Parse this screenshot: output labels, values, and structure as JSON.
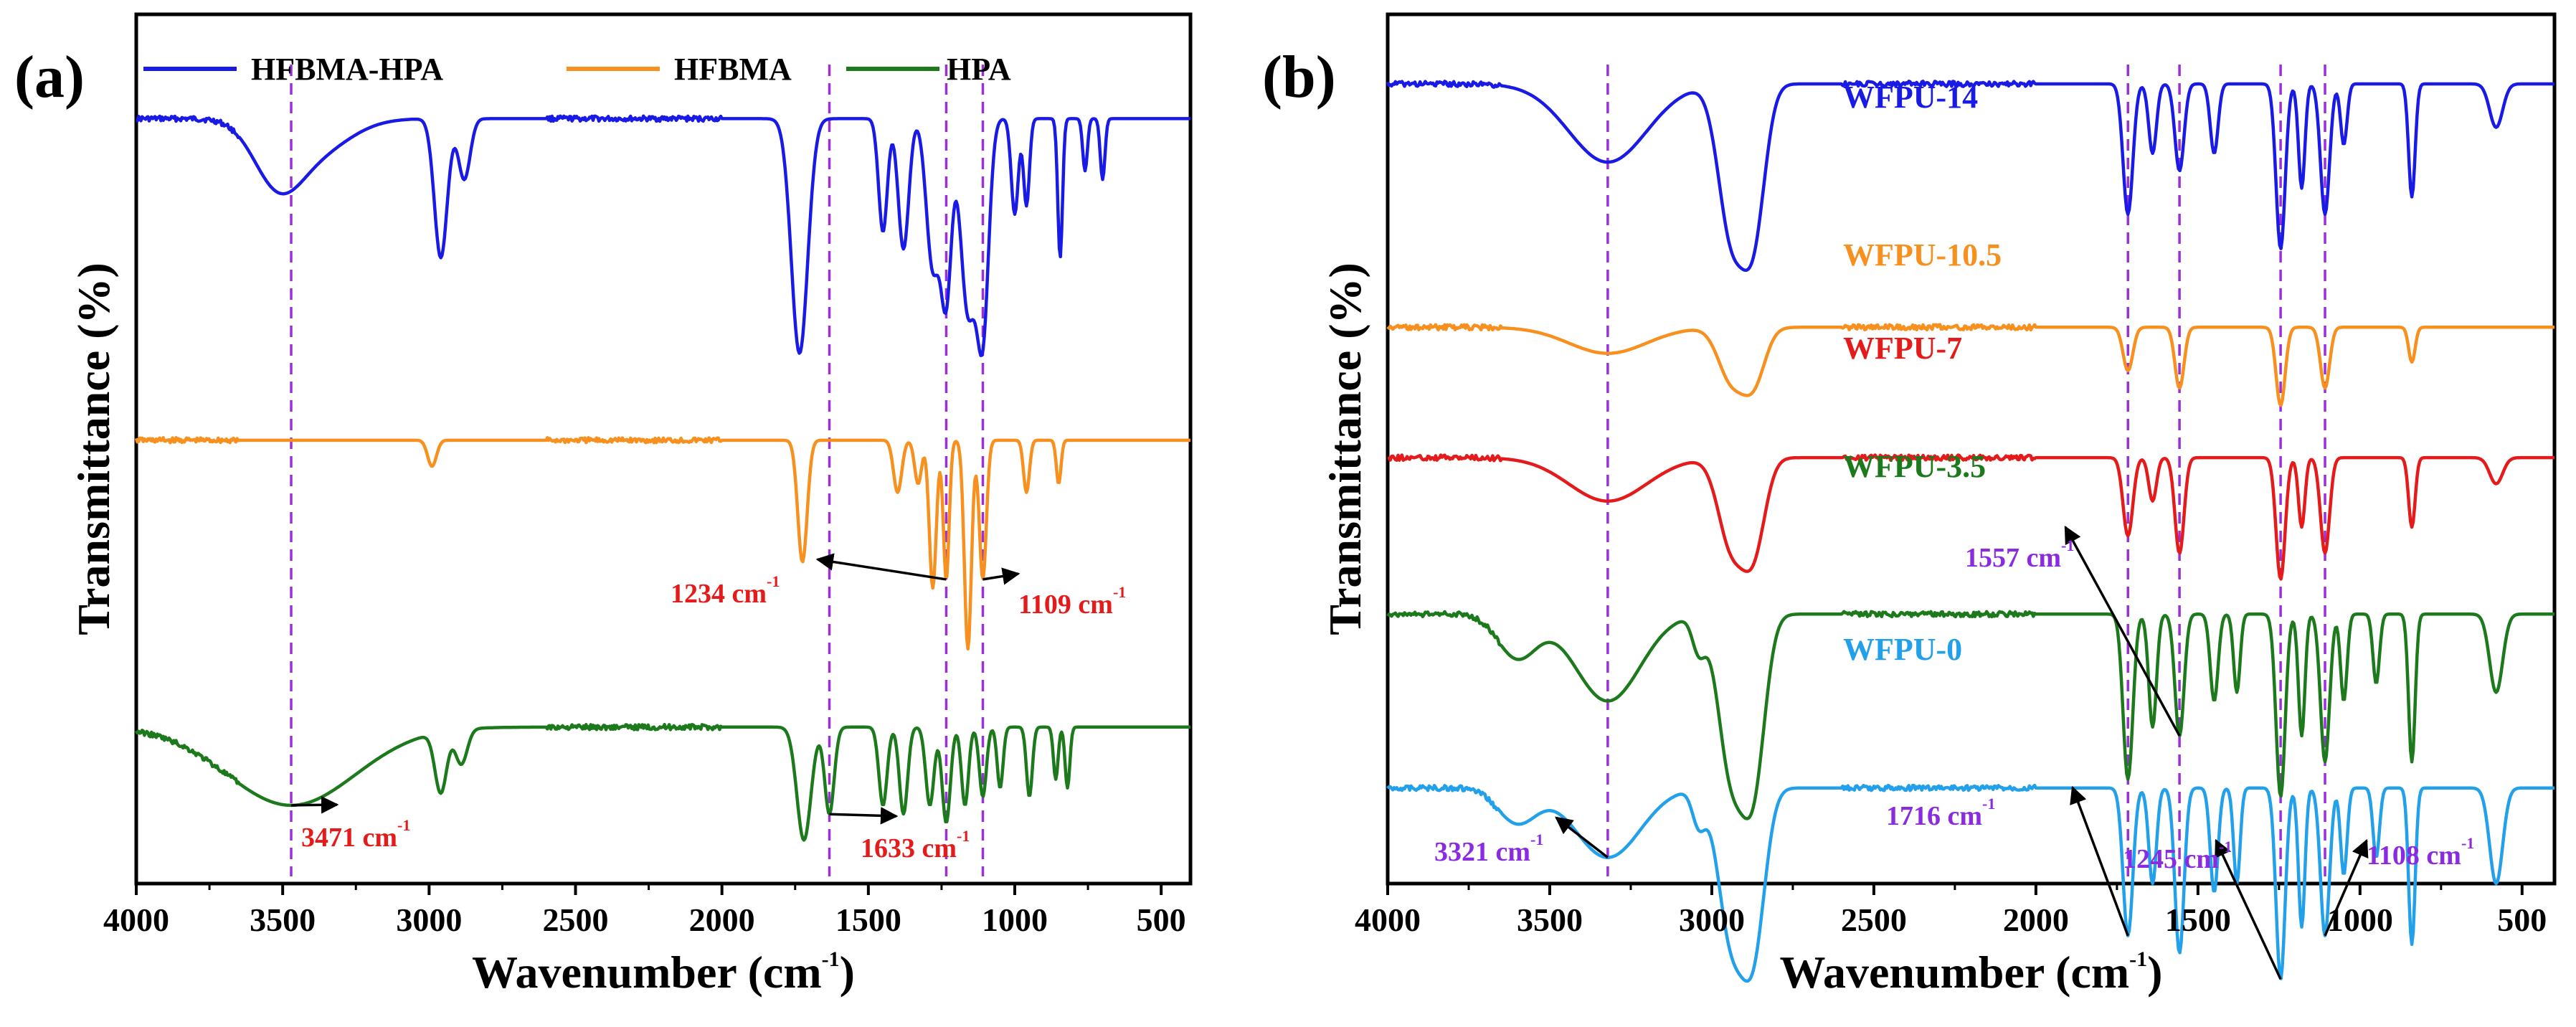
{
  "chart_data": [
    {
      "panel_label": "(a)",
      "type": "line",
      "xlabel": "Wavenumber (cm",
      "xlabel_sup": "-1",
      "xlabel_tail": ")",
      "ylabel": "Transmittance (%)",
      "xlim": [
        4000,
        400
      ],
      "xticks": [
        "4000",
        "3500",
        "3000",
        "2500",
        "2000",
        "1500",
        "1000",
        "500"
      ],
      "legend_position": "top",
      "legend": [
        {
          "name": "HFBMA-HPA",
          "color": "#1a1ae6"
        },
        {
          "name": "HFBMA",
          "color": "#f7901e"
        },
        {
          "name": "HPA",
          "color": "#1c7a1c"
        }
      ],
      "series": [
        {
          "name": "HFBMA-HPA",
          "color": "#1a1ae6",
          "baseline": 0.12,
          "peaks": [
            [
              3520,
              0.06,
              80
            ],
            [
              3400,
              0.04,
              120
            ],
            [
              2960,
              0.16,
              22
            ],
            [
              2880,
              0.07,
              20
            ],
            [
              1735,
              0.27,
              28
            ],
            [
              1450,
              0.13,
              15
            ],
            [
              1380,
              0.15,
              18
            ],
            [
              1280,
              0.17,
              22
            ],
            [
              1234,
              0.2,
              18
            ],
            [
              1160,
              0.22,
              25
            ],
            [
              1109,
              0.24,
              20
            ],
            [
              1000,
              0.11,
              12
            ],
            [
              960,
              0.1,
              10
            ],
            [
              845,
              0.16,
              8
            ],
            [
              760,
              0.06,
              8
            ],
            [
              700,
              0.07,
              8
            ]
          ]
        },
        {
          "name": "HFBMA",
          "color": "#f7901e",
          "baseline": 0.49,
          "peaks": [
            [
              2990,
              0.03,
              15
            ],
            [
              1725,
              0.14,
              16
            ],
            [
              1400,
              0.06,
              14
            ],
            [
              1330,
              0.05,
              12
            ],
            [
              1280,
              0.17,
              12
            ],
            [
              1234,
              0.16,
              10
            ],
            [
              1160,
              0.24,
              12
            ],
            [
              1109,
              0.16,
              12
            ],
            [
              960,
              0.06,
              10
            ],
            [
              850,
              0.05,
              8
            ]
          ]
        },
        {
          "name": "HPA",
          "color": "#1c7a1c",
          "baseline": 0.82,
          "peaks": [
            [
              3471,
              0.09,
              220
            ],
            [
              2960,
              0.07,
              20
            ],
            [
              2890,
              0.04,
              20
            ],
            [
              1720,
              0.13,
              24
            ],
            [
              1633,
              0.1,
              16
            ],
            [
              1450,
              0.09,
              14
            ],
            [
              1380,
              0.1,
              14
            ],
            [
              1290,
              0.09,
              14
            ],
            [
              1234,
              0.11,
              14
            ],
            [
              1170,
              0.09,
              12
            ],
            [
              1109,
              0.08,
              12
            ],
            [
              1050,
              0.07,
              10
            ],
            [
              950,
              0.08,
              10
            ],
            [
              860,
              0.06,
              8
            ],
            [
              820,
              0.07,
              8
            ]
          ]
        }
      ],
      "reference_lines": [
        3471,
        1633,
        1234,
        1109
      ],
      "annotations": [
        {
          "text": "3471 cm",
          "sup": "-1",
          "color": "#e51a1a",
          "peak_x": 3471,
          "on_series": 2
        },
        {
          "text": "1633 cm",
          "sup": "-1",
          "color": "#e51a1a",
          "peak_x": 1633,
          "on_series": 2
        },
        {
          "text": "1234 cm",
          "sup": "-1",
          "color": "#e51a1a",
          "peak_x": 1234,
          "on_series": 1
        },
        {
          "text": "1109 cm",
          "sup": "-1",
          "color": "#e51a1a",
          "peak_x": 1109,
          "on_series": 1
        }
      ]
    },
    {
      "panel_label": "(b)",
      "type": "line",
      "xlabel": "Wavenumber (cm",
      "xlabel_sup": "-1",
      "xlabel_tail": ")",
      "ylabel": "Transmittance (%)",
      "xlim": [
        4000,
        400
      ],
      "xticks": [
        "4000",
        "3500",
        "3000",
        "2500",
        "2000",
        "1500",
        "1000",
        "500"
      ],
      "series": [
        {
          "name": "WFPU-14",
          "color": "#1a1ae6",
          "baseline": 0.08,
          "peaks": [
            [
              3321,
              0.09,
              120
            ],
            [
              2940,
              0.17,
              40
            ],
            [
              2870,
              0.16,
              35
            ],
            [
              1716,
              0.15,
              15
            ],
            [
              1640,
              0.08,
              12
            ],
            [
              1557,
              0.1,
              14
            ],
            [
              1450,
              0.08,
              12
            ],
            [
              1245,
              0.19,
              14
            ],
            [
              1180,
              0.12,
              10
            ],
            [
              1108,
              0.15,
              14
            ],
            [
              1050,
              0.07,
              10
            ],
            [
              840,
              0.13,
              10
            ],
            [
              580,
              0.05,
              20
            ]
          ]
        },
        {
          "name": "WFPU-10.5",
          "color": "#f7901e",
          "baseline": 0.36,
          "peaks": [
            [
              3321,
              0.03,
              120
            ],
            [
              2940,
              0.06,
              40
            ],
            [
              2870,
              0.06,
              35
            ],
            [
              1716,
              0.05,
              15
            ],
            [
              1557,
              0.07,
              14
            ],
            [
              1245,
              0.09,
              14
            ],
            [
              1108,
              0.07,
              14
            ],
            [
              840,
              0.04,
              10
            ]
          ]
        },
        {
          "name": "WFPU-7",
          "color": "#e51a1a",
          "baseline": 0.51,
          "peaks": [
            [
              3321,
              0.05,
              120
            ],
            [
              2940,
              0.1,
              40
            ],
            [
              2870,
              0.1,
              35
            ],
            [
              1716,
              0.09,
              15
            ],
            [
              1640,
              0.05,
              12
            ],
            [
              1557,
              0.11,
              14
            ],
            [
              1245,
              0.14,
              14
            ],
            [
              1180,
              0.08,
              10
            ],
            [
              1108,
              0.11,
              14
            ],
            [
              840,
              0.08,
              10
            ],
            [
              580,
              0.03,
              20
            ]
          ]
        },
        {
          "name": "WFPU-3.5",
          "color": "#1c7a1c",
          "baseline": 0.69,
          "peaks": [
            [
              3600,
              0.05,
              60
            ],
            [
              3321,
              0.1,
              100
            ],
            [
              3040,
              0.04,
              20
            ],
            [
              2940,
              0.18,
              40
            ],
            [
              2870,
              0.18,
              35
            ],
            [
              1716,
              0.19,
              15
            ],
            [
              1640,
              0.13,
              12
            ],
            [
              1557,
              0.14,
              14
            ],
            [
              1450,
              0.1,
              12
            ],
            [
              1380,
              0.09,
              10
            ],
            [
              1245,
              0.21,
              14
            ],
            [
              1180,
              0.14,
              10
            ],
            [
              1108,
              0.17,
              14
            ],
            [
              1050,
              0.1,
              10
            ],
            [
              950,
              0.08,
              10
            ],
            [
              840,
              0.17,
              10
            ],
            [
              580,
              0.09,
              20
            ]
          ]
        },
        {
          "name": "WFPU-0",
          "color": "#22a0ea",
          "baseline": 0.89,
          "peaks": [
            [
              3600,
              0.04,
              60
            ],
            [
              3321,
              0.08,
              100
            ],
            [
              3040,
              0.04,
              20
            ],
            [
              2940,
              0.17,
              40
            ],
            [
              2870,
              0.17,
              35
            ],
            [
              1716,
              0.17,
              15
            ],
            [
              1640,
              0.11,
              12
            ],
            [
              1557,
              0.19,
              14
            ],
            [
              1450,
              0.12,
              12
            ],
            [
              1380,
              0.11,
              10
            ],
            [
              1245,
              0.22,
              14
            ],
            [
              1180,
              0.16,
              10
            ],
            [
              1108,
              0.17,
              14
            ],
            [
              1050,
              0.1,
              10
            ],
            [
              950,
              0.08,
              10
            ],
            [
              840,
              0.18,
              10
            ],
            [
              580,
              0.11,
              20
            ]
          ]
        }
      ],
      "reference_lines": [
        3321,
        1716,
        1557,
        1245,
        1108
      ],
      "annotations": [
        {
          "text": "3321 cm",
          "sup": "-1",
          "color": "#8a2be2",
          "peak_x": 3321,
          "on_series": 4
        },
        {
          "text": "1716 cm",
          "sup": "-1",
          "color": "#8a2be2",
          "peak_x": 1716,
          "on_series": 4
        },
        {
          "text": "1557 cm",
          "sup": "-1",
          "color": "#8a2be2",
          "peak_x": 1557,
          "on_series": 3
        },
        {
          "text": "1245 cm",
          "sup": "-1",
          "color": "#8a2be2",
          "peak_x": 1245,
          "on_series": 4
        },
        {
          "text": "1108 cm",
          "sup": "-1",
          "color": "#8a2be2",
          "peak_x": 1108,
          "on_series": 4
        }
      ]
    }
  ]
}
